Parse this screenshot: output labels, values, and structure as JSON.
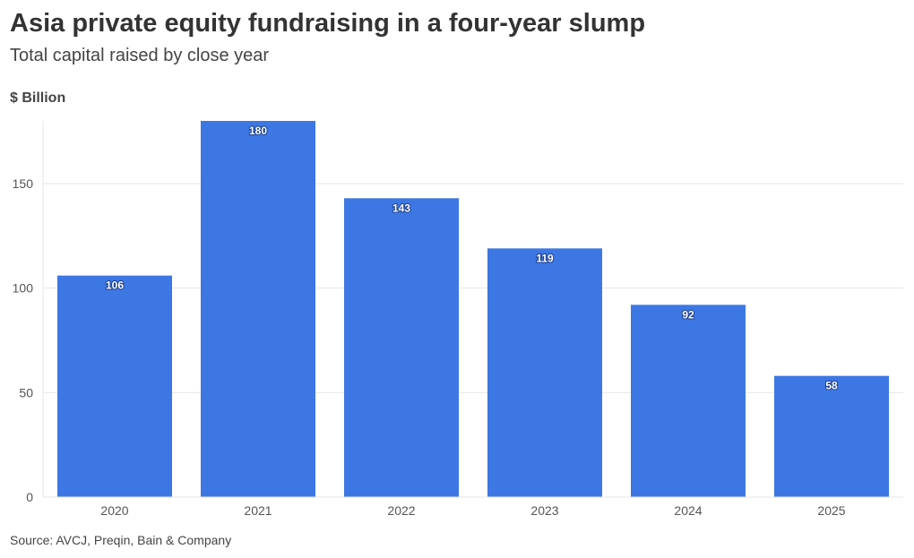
{
  "header": {
    "title": "Asia private equity fundraising in a four-year slump",
    "subtitle": "Total capital raised by close year"
  },
  "footer": {
    "source": "Source: AVCJ, Preqin, Bain & Company"
  },
  "chart_data": {
    "type": "bar",
    "title": "Asia private equity fundraising in a four-year slump",
    "subtitle": "Total capital raised by close year",
    "ylabel": "$ Billion",
    "xlabel": "",
    "categories": [
      "2020",
      "2021",
      "2022",
      "2023",
      "2024",
      "2025"
    ],
    "values": [
      106,
      180,
      143,
      119,
      92,
      58
    ],
    "data_labels": [
      "106",
      "180",
      "143",
      "119",
      "92",
      "58"
    ],
    "yticks": [
      0,
      50,
      100,
      150
    ],
    "ylim": [
      0,
      180
    ],
    "grid": true,
    "legend": "none",
    "bar_color": "#3d77e3",
    "source": "Source: AVCJ, Preqin, Bain & Company"
  }
}
